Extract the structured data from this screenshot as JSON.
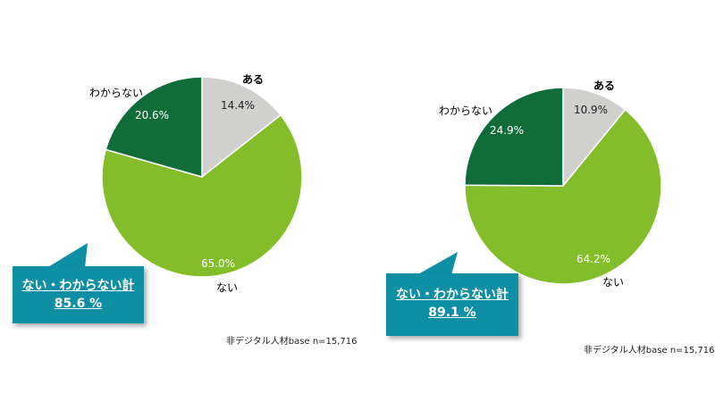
{
  "chart_data": [
    {
      "type": "pie",
      "categories": [
        "ある",
        "ない",
        "わからない"
      ],
      "values": [
        14.4,
        65.0,
        20.6
      ],
      "value_labels": [
        "14.4%",
        "65.0%",
        "20.6%"
      ],
      "colors": [
        "#d0d0cf",
        "#84bd2a",
        "#106d3a"
      ],
      "callout": {
        "line1": "ない・わからない計",
        "line2": "85.6 %"
      },
      "base_note": "非デジタル人材base n=15,716"
    },
    {
      "type": "pie",
      "categories": [
        "ある",
        "ない",
        "わからない"
      ],
      "values": [
        10.9,
        64.2,
        24.9
      ],
      "value_labels": [
        "10.9%",
        "64.2%",
        "24.9%"
      ],
      "colors": [
        "#d0d0cf",
        "#84bd2a",
        "#106d3a"
      ],
      "callout": {
        "line1": "ない・わからない計",
        "line2": "89.1 %"
      },
      "base_note": "非デジタル人材base n=15,716"
    }
  ],
  "colors": {
    "callout_bg": "#0f8fa3",
    "callout_text": "#ffffff"
  }
}
